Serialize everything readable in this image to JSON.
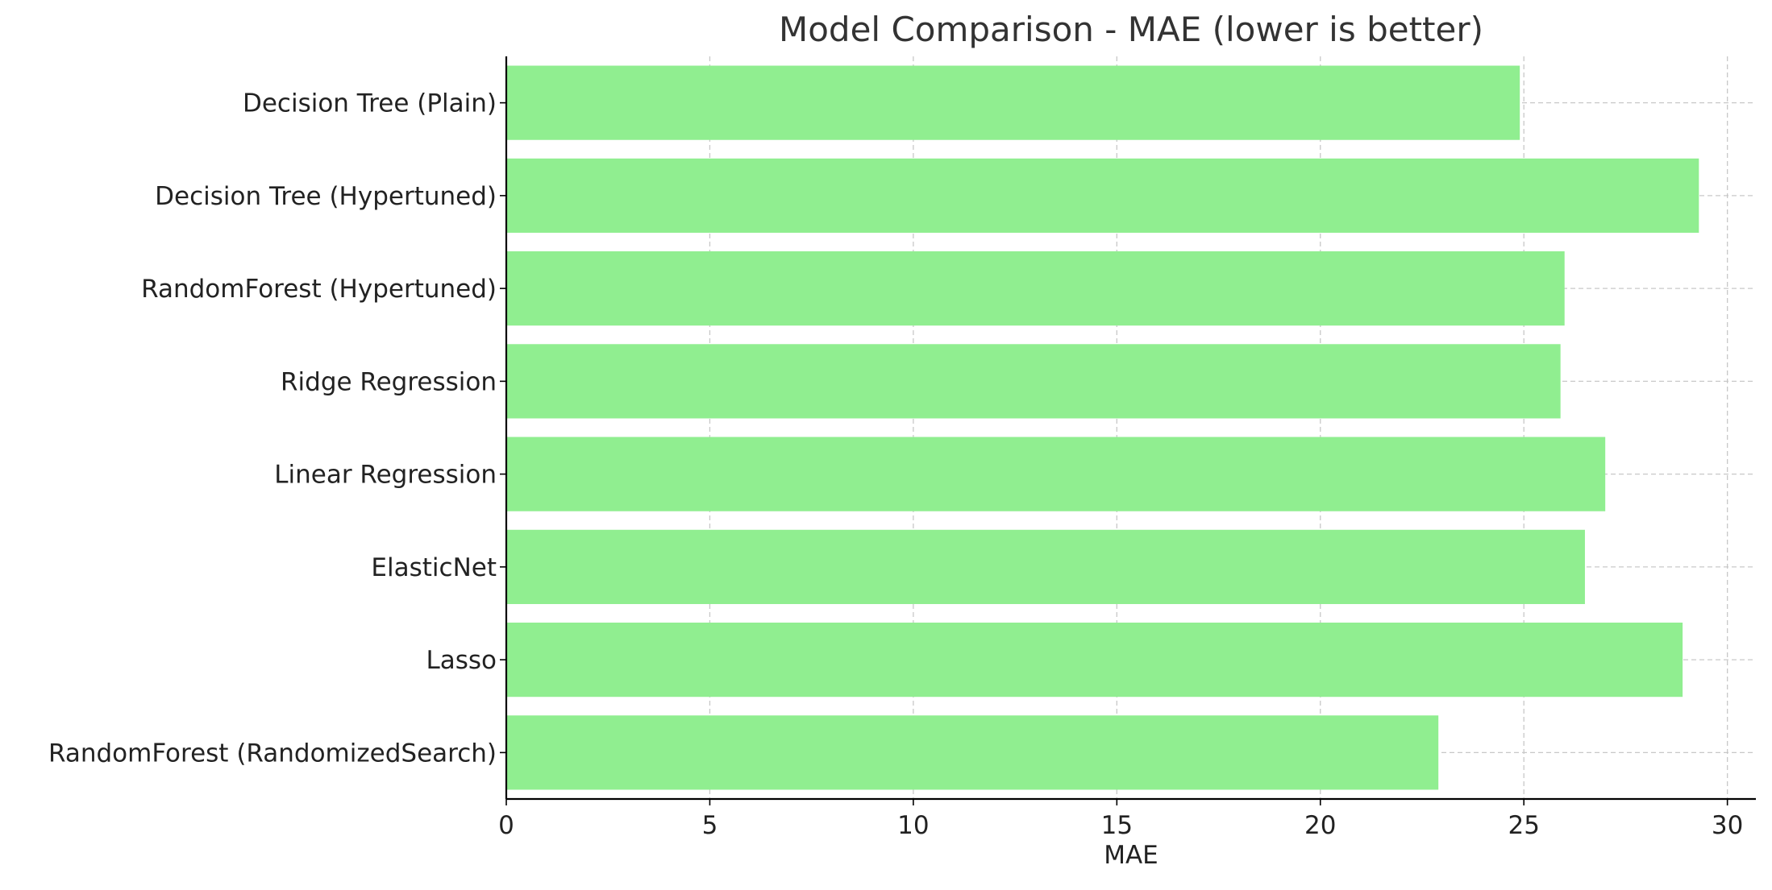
{
  "chart_data": {
    "type": "bar",
    "orientation": "horizontal",
    "title": "Model Comparison - MAE (lower is better)",
    "xlabel": "MAE",
    "ylabel": "",
    "categories": [
      "Decision Tree (Plain)",
      "Decision Tree (Hypertuned)",
      "RandomForest (Hypertuned)",
      "Ridge Regression",
      "Linear Regression",
      "ElasticNet",
      "Lasso",
      "RandomForest (RandomizedSearch)"
    ],
    "values": [
      24.9,
      29.3,
      26.0,
      25.9,
      27.0,
      26.5,
      28.9,
      22.9
    ],
    "xlim": [
      0,
      30.7
    ],
    "xticks": [
      0,
      5,
      10,
      15,
      20,
      25,
      30
    ],
    "grid": true,
    "bar_color": "#90ee90"
  }
}
